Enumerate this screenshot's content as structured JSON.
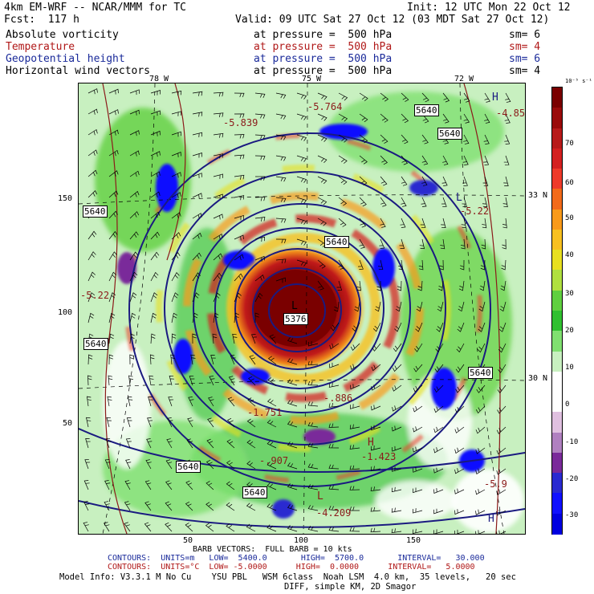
{
  "header": {
    "line1_left": "4km EM-WRF -- NCAR/MMM for TC",
    "line1_right": "Init: 12 UTC Mon 22 Oct 12",
    "line2_left": "Fcst:  117 h",
    "line2_right": "Valid: 09 UTC Sat 27 Oct 12 (03 MDT Sat 27 Oct 12)",
    "fields": [
      {
        "name": "Absolute vorticity",
        "level": "at pressure =  500 hPa",
        "sm": "sm= 6",
        "color": "#000000"
      },
      {
        "name": "Temperature",
        "level": "at pressure =  500 hPa",
        "sm": "sm= 4",
        "color": "#b01818"
      },
      {
        "name": "Geopotential height",
        "level": "at pressure =  500 hPa",
        "sm": "sm= 6",
        "color": "#1a2a9a"
      },
      {
        "name": "Horizontal wind vectors",
        "level": "at pressure =  500 hPa",
        "sm": "sm= 4",
        "color": "#000000"
      }
    ]
  },
  "axes": {
    "top_lon": [
      "78 W",
      "75 W",
      "72 W"
    ],
    "right_lat": [
      "33 N",
      "30 N"
    ],
    "left_grid": [
      "150",
      "100",
      "50"
    ],
    "bottom_grid": [
      "50",
      "100",
      "150"
    ]
  },
  "map_labels": {
    "contour_labels": [
      "5640",
      "5640",
      "5640",
      "5640",
      "5640",
      "5640",
      "5640",
      "5640",
      "5376"
    ],
    "high_low": [
      "H",
      "L",
      "L",
      "H",
      "L",
      "H"
    ],
    "temp_values": [
      "-5.764",
      "-5.839",
      "-4.85",
      "-5.22",
      "-5.22",
      "-4.209",
      "-5.9",
      "-1.423",
      "-.907",
      "-.886",
      "-1.751"
    ],
    "colors": {
      "contour": "#1a1a80",
      "temp": "#8b1a1a"
    }
  },
  "colorbar": {
    "unit": "10⁻⁵ s⁻¹",
    "labels": [
      "70",
      "60",
      "50",
      "40",
      "30",
      "20",
      "10",
      "0",
      "-10",
      "-20",
      "-30"
    ],
    "colors": [
      "#7a0000",
      "#9a0a0a",
      "#b81a1a",
      "#d42020",
      "#ee3a2a",
      "#f26a1a",
      "#f99a1a",
      "#f8c020",
      "#e8e020",
      "#b0e040",
      "#60d040",
      "#30c030",
      "#80e070",
      "#c8f0c0",
      "#ffffff",
      "#ffffff",
      "#e0c0e0",
      "#b080c0",
      "#7a2a9a",
      "#2a2ad0",
      "#1010ff",
      "#0000e0"
    ]
  },
  "footer": {
    "barb": "BARB VECTORS:  FULL BARB = 10 kts",
    "contours1": "CONTOURS:  UNITS=m   LOW=  5400.0       HIGH=  5700.0       INTERVAL=   30.000",
    "contours2": "CONTOURS:  UNITS=°C  LOW= -5.0000      HIGH=  0.0000      INTERVAL=   5.0000",
    "model_info": "Model Info: V3.3.1 M No Cu    YSU PBL   WSM 6class  Noah LSM  4.0 km,  35 levels,   20 sec",
    "model_info2": "DIFF, simple KM, 2D Smagor"
  }
}
